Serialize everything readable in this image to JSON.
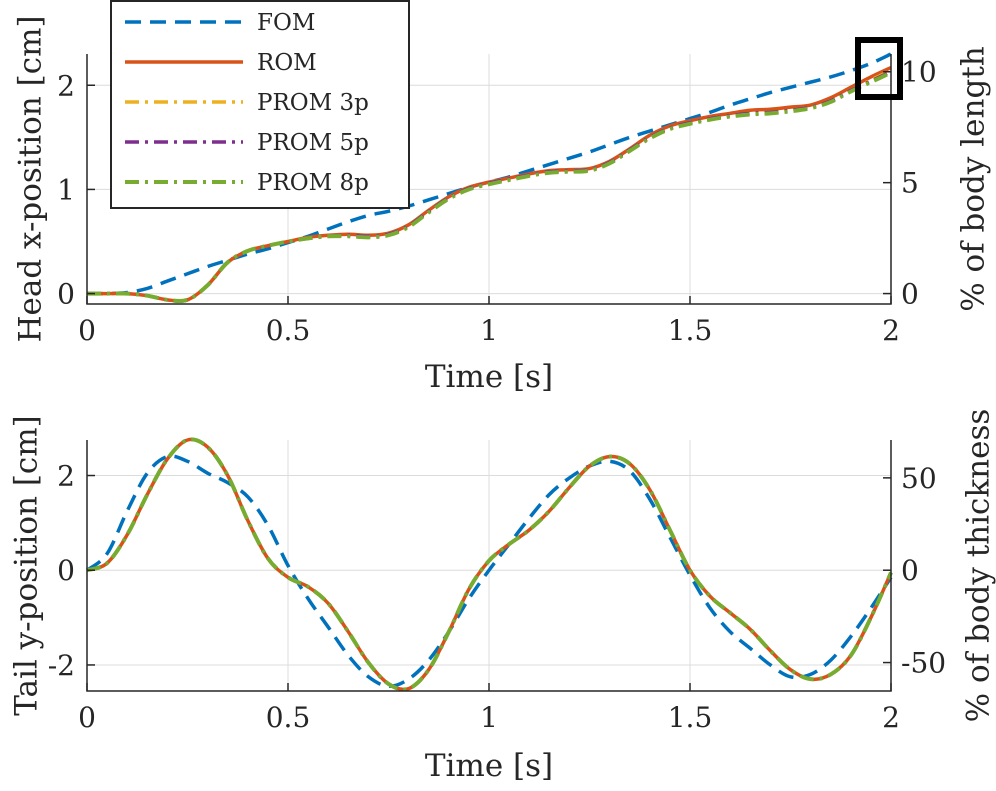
{
  "chart_data": [
    {
      "type": "line",
      "id": "top",
      "xlabel": "Time [s]",
      "ylabel": "Head x-position [cm]",
      "y2label": "% of body length",
      "xlim": [
        0,
        2
      ],
      "ylim": [
        -0.1,
        2.3
      ],
      "y2lim": [
        -0.47,
        10.8
      ],
      "xticks": [
        0,
        0.5,
        1,
        1.5,
        2
      ],
      "xtick_labels": [
        "0",
        "0.5",
        "1",
        "1.5",
        "2"
      ],
      "yticks": [
        0,
        1,
        2
      ],
      "ytick_labels": [
        "0",
        "1",
        "2"
      ],
      "y2ticks": [
        0,
        5,
        10
      ],
      "y2tick_labels": [
        "0",
        "5",
        "10"
      ],
      "grid": true,
      "legend_position": "top-left",
      "annotation": "black square around curve endpoints near t = 2 s",
      "x": [
        0,
        0.05,
        0.1,
        0.15,
        0.2,
        0.25,
        0.3,
        0.35,
        0.4,
        0.45,
        0.5,
        0.55,
        0.6,
        0.65,
        0.7,
        0.75,
        0.8,
        0.85,
        0.9,
        0.95,
        1.0,
        1.05,
        1.1,
        1.15,
        1.2,
        1.25,
        1.3,
        1.35,
        1.4,
        1.45,
        1.5,
        1.55,
        1.6,
        1.65,
        1.7,
        1.75,
        1.8,
        1.85,
        1.9,
        1.95,
        2.0
      ],
      "series": [
        {
          "name": "FOM",
          "color": "#0072BD",
          "dash": "dashed",
          "values": [
            0.0,
            0.0,
            0.01,
            0.05,
            0.12,
            0.19,
            0.26,
            0.32,
            0.38,
            0.43,
            0.49,
            0.55,
            0.62,
            0.69,
            0.75,
            0.79,
            0.84,
            0.9,
            0.96,
            1.02,
            1.07,
            1.12,
            1.18,
            1.24,
            1.3,
            1.36,
            1.43,
            1.5,
            1.56,
            1.62,
            1.68,
            1.74,
            1.81,
            1.87,
            1.93,
            1.98,
            2.03,
            2.08,
            2.14,
            2.21,
            2.3
          ]
        },
        {
          "name": "ROM",
          "color": "#D95319",
          "dash": "solid",
          "values": [
            0.0,
            0.0,
            0.0,
            -0.02,
            -0.06,
            -0.06,
            0.08,
            0.3,
            0.41,
            0.46,
            0.5,
            0.54,
            0.56,
            0.57,
            0.56,
            0.58,
            0.66,
            0.8,
            0.93,
            1.02,
            1.07,
            1.11,
            1.15,
            1.18,
            1.19,
            1.2,
            1.27,
            1.39,
            1.52,
            1.61,
            1.66,
            1.7,
            1.73,
            1.76,
            1.77,
            1.79,
            1.81,
            1.88,
            1.98,
            2.08,
            2.17
          ]
        },
        {
          "name": "PROM 3p",
          "color": "#EDB120",
          "dash": "dashdot",
          "values": [
            0.0,
            0.0,
            0.0,
            -0.02,
            -0.06,
            -0.06,
            0.08,
            0.3,
            0.41,
            0.46,
            0.5,
            0.53,
            0.55,
            0.56,
            0.55,
            0.57,
            0.65,
            0.79,
            0.92,
            1.01,
            1.06,
            1.1,
            1.14,
            1.17,
            1.18,
            1.19,
            1.26,
            1.38,
            1.5,
            1.59,
            1.64,
            1.68,
            1.71,
            1.73,
            1.74,
            1.76,
            1.79,
            1.85,
            1.95,
            2.05,
            2.14
          ]
        },
        {
          "name": "PROM 5p",
          "color": "#7E2F8E",
          "dash": "dashdot",
          "values": [
            0.0,
            0.0,
            0.0,
            -0.02,
            -0.06,
            -0.06,
            0.08,
            0.3,
            0.41,
            0.46,
            0.5,
            0.53,
            0.55,
            0.56,
            0.55,
            0.57,
            0.65,
            0.79,
            0.92,
            1.01,
            1.06,
            1.1,
            1.14,
            1.17,
            1.18,
            1.19,
            1.26,
            1.38,
            1.5,
            1.59,
            1.64,
            1.68,
            1.71,
            1.73,
            1.74,
            1.76,
            1.79,
            1.85,
            1.95,
            2.04,
            2.13
          ]
        },
        {
          "name": "PROM 8p",
          "color": "#77AC30",
          "dash": "dashdot",
          "values": [
            0.0,
            0.0,
            0.0,
            -0.02,
            -0.06,
            -0.06,
            0.08,
            0.3,
            0.41,
            0.46,
            0.5,
            0.53,
            0.55,
            0.55,
            0.54,
            0.56,
            0.64,
            0.78,
            0.91,
            1.0,
            1.05,
            1.09,
            1.13,
            1.16,
            1.17,
            1.18,
            1.25,
            1.37,
            1.49,
            1.58,
            1.63,
            1.67,
            1.7,
            1.72,
            1.73,
            1.75,
            1.78,
            1.84,
            1.94,
            2.03,
            2.12
          ]
        }
      ]
    },
    {
      "type": "line",
      "id": "bottom",
      "xlabel": "Time [s]",
      "ylabel": "Tail y-position [cm]",
      "y2label": "% of body thickness",
      "xlim": [
        0,
        2
      ],
      "ylim": [
        -2.55,
        2.75
      ],
      "y2lim": [
        -65.4,
        70.5
      ],
      "xticks": [
        0,
        0.5,
        1,
        1.5,
        2
      ],
      "xtick_labels": [
        "0",
        "0.5",
        "1",
        "1.5",
        "2"
      ],
      "yticks": [
        -2,
        0,
        2
      ],
      "ytick_labels": [
        "-2",
        "0",
        "2"
      ],
      "y2ticks": [
        -50,
        0,
        50
      ],
      "y2tick_labels": [
        "-50",
        "0",
        "50"
      ],
      "grid": true,
      "x": [
        0,
        0.05,
        0.1,
        0.15,
        0.2,
        0.25,
        0.3,
        0.35,
        0.4,
        0.45,
        0.5,
        0.55,
        0.6,
        0.65,
        0.7,
        0.75,
        0.8,
        0.85,
        0.9,
        0.95,
        1.0,
        1.05,
        1.1,
        1.15,
        1.2,
        1.25,
        1.3,
        1.35,
        1.4,
        1.45,
        1.5,
        1.55,
        1.6,
        1.65,
        1.7,
        1.75,
        1.8,
        1.85,
        1.9,
        1.95,
        2.0
      ],
      "series": [
        {
          "name": "FOM",
          "color": "#0072BD",
          "dash": "dashed",
          "values": [
            0.0,
            0.35,
            1.25,
            2.05,
            2.4,
            2.3,
            2.05,
            1.85,
            1.55,
            0.95,
            0.1,
            -0.6,
            -1.2,
            -1.8,
            -2.25,
            -2.45,
            -2.3,
            -1.9,
            -1.3,
            -0.6,
            0.0,
            0.55,
            1.1,
            1.6,
            1.95,
            2.2,
            2.3,
            2.1,
            1.5,
            0.7,
            -0.1,
            -0.8,
            -1.3,
            -1.65,
            -2.0,
            -2.25,
            -2.2,
            -1.9,
            -1.4,
            -0.8,
            -0.15
          ]
        },
        {
          "name": "ROM",
          "color": "#D95319",
          "dash": "solid",
          "values": [
            0.0,
            0.15,
            0.75,
            1.6,
            2.35,
            2.75,
            2.6,
            2.0,
            1.05,
            0.25,
            -0.15,
            -0.35,
            -0.7,
            -1.3,
            -1.95,
            -2.4,
            -2.5,
            -2.1,
            -1.3,
            -0.4,
            0.2,
            0.55,
            0.85,
            1.25,
            1.75,
            2.2,
            2.4,
            2.25,
            1.7,
            0.85,
            0.0,
            -0.55,
            -0.9,
            -1.25,
            -1.7,
            -2.1,
            -2.3,
            -2.2,
            -1.8,
            -1.0,
            -0.05
          ]
        },
        {
          "name": "PROM 3p",
          "color": "#EDB120",
          "dash": "dashdot",
          "values": [
            0.0,
            0.15,
            0.75,
            1.6,
            2.35,
            2.75,
            2.6,
            2.0,
            1.05,
            0.25,
            -0.15,
            -0.35,
            -0.7,
            -1.3,
            -1.95,
            -2.4,
            -2.5,
            -2.1,
            -1.3,
            -0.4,
            0.2,
            0.55,
            0.85,
            1.25,
            1.75,
            2.2,
            2.4,
            2.25,
            1.7,
            0.85,
            0.0,
            -0.55,
            -0.9,
            -1.25,
            -1.7,
            -2.1,
            -2.3,
            -2.2,
            -1.8,
            -1.0,
            -0.05
          ]
        },
        {
          "name": "PROM 5p",
          "color": "#7E2F8E",
          "dash": "dashdot",
          "values": [
            0.0,
            0.15,
            0.75,
            1.6,
            2.35,
            2.75,
            2.6,
            2.0,
            1.05,
            0.25,
            -0.15,
            -0.35,
            -0.7,
            -1.3,
            -1.95,
            -2.4,
            -2.5,
            -2.1,
            -1.3,
            -0.4,
            0.2,
            0.55,
            0.85,
            1.25,
            1.75,
            2.2,
            2.4,
            2.25,
            1.7,
            0.85,
            0.0,
            -0.55,
            -0.9,
            -1.25,
            -1.7,
            -2.1,
            -2.3,
            -2.2,
            -1.8,
            -1.0,
            -0.05
          ]
        },
        {
          "name": "PROM 8p",
          "color": "#77AC30",
          "dash": "dashdot",
          "values": [
            0.0,
            0.15,
            0.75,
            1.6,
            2.35,
            2.75,
            2.6,
            2.0,
            1.05,
            0.25,
            -0.15,
            -0.35,
            -0.7,
            -1.3,
            -1.95,
            -2.4,
            -2.5,
            -2.1,
            -1.3,
            -0.4,
            0.2,
            0.55,
            0.85,
            1.25,
            1.75,
            2.2,
            2.4,
            2.25,
            1.7,
            0.85,
            0.0,
            -0.55,
            -0.9,
            -1.25,
            -1.7,
            -2.1,
            -2.3,
            -2.2,
            -1.8,
            -1.0,
            -0.05
          ]
        }
      ]
    }
  ]
}
